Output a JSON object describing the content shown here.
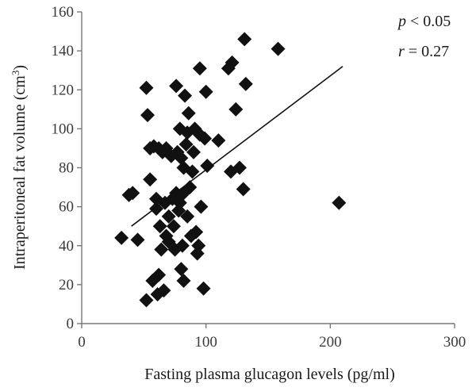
{
  "chart_data": {
    "type": "scatter",
    "xlabel": "Fasting plasma glucagon levels (pg/ml)",
    "ylabel_main": "Intraperitoneal fat volume (cm",
    "ylabel_sup": "3",
    "ylabel_close": ")",
    "xlim": [
      0,
      300
    ],
    "ylim": [
      0,
      160
    ],
    "x_ticks": [
      "0",
      "100",
      "200",
      "300"
    ],
    "y_ticks": [
      "0",
      "20",
      "40",
      "60",
      "80",
      "100",
      "120",
      "140",
      "160"
    ],
    "grid": false,
    "annotations": {
      "p_symbol": "p",
      "p_rest": " < 0.05",
      "r_symbol": "r",
      "r_rest": " = 0.27"
    },
    "trendline": {
      "x": [
        40,
        210
      ],
      "y": [
        50,
        132
      ]
    },
    "colors": {
      "marker": "#111111",
      "axis": "#777777",
      "line": "#111111"
    },
    "points": [
      [
        32,
        44
      ],
      [
        38,
        66
      ],
      [
        41,
        67
      ],
      [
        45,
        43
      ],
      [
        52,
        121
      ],
      [
        53,
        107
      ],
      [
        52,
        12
      ],
      [
        55,
        74
      ],
      [
        55,
        90
      ],
      [
        58,
        91
      ],
      [
        57,
        22
      ],
      [
        60,
        59
      ],
      [
        60,
        64
      ],
      [
        61,
        15
      ],
      [
        62,
        25
      ],
      [
        62,
        90
      ],
      [
        63,
        50
      ],
      [
        64,
        38
      ],
      [
        65,
        88
      ],
      [
        66,
        17
      ],
      [
        67,
        62
      ],
      [
        68,
        45
      ],
      [
        68,
        90
      ],
      [
        70,
        55
      ],
      [
        70,
        42
      ],
      [
        72,
        86
      ],
      [
        73,
        64
      ],
      [
        74,
        50
      ],
      [
        75,
        38
      ],
      [
        76,
        122
      ],
      [
        76,
        67
      ],
      [
        77,
        88
      ],
      [
        78,
        58
      ],
      [
        79,
        100
      ],
      [
        79,
        62
      ],
      [
        80,
        85
      ],
      [
        80,
        28
      ],
      [
        81,
        40
      ],
      [
        82,
        80
      ],
      [
        82,
        22
      ],
      [
        82,
        67
      ],
      [
        83,
        117
      ],
      [
        84,
        92
      ],
      [
        85,
        98
      ],
      [
        85,
        55
      ],
      [
        86,
        108
      ],
      [
        87,
        70
      ],
      [
        88,
        45
      ],
      [
        89,
        78
      ],
      [
        90,
        88
      ],
      [
        91,
        100
      ],
      [
        92,
        47
      ],
      [
        93,
        36
      ],
      [
        94,
        40
      ],
      [
        95,
        97
      ],
      [
        95,
        131
      ],
      [
        96,
        60
      ],
      [
        98,
        18
      ],
      [
        99,
        95
      ],
      [
        100,
        119
      ],
      [
        101,
        81
      ],
      [
        110,
        94
      ],
      [
        118,
        131
      ],
      [
        120,
        78
      ],
      [
        121,
        134
      ],
      [
        124,
        110
      ],
      [
        127,
        80
      ],
      [
        130,
        69
      ],
      [
        131,
        146
      ],
      [
        132,
        123
      ],
      [
        158,
        141
      ],
      [
        207,
        62
      ]
    ]
  }
}
